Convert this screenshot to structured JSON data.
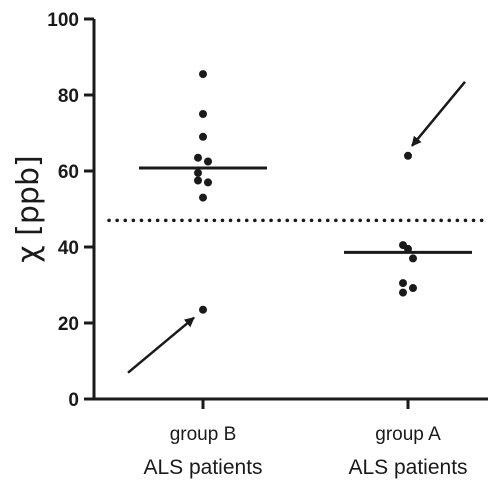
{
  "chart_data": {
    "type": "scatter",
    "title": "",
    "ylabel": "χ [ppb]",
    "xlabel": "",
    "ylim": [
      0,
      100
    ],
    "yticks": [
      0,
      20,
      40,
      60,
      80,
      100
    ],
    "categories": [
      {
        "line1": "group B",
        "line2": "ALS patients"
      },
      {
        "line1": "group A",
        "line2": "ALS patients"
      }
    ],
    "series": [
      {
        "values": [
          85.5,
          75,
          69,
          63.5,
          62.5,
          59.5,
          57,
          57.5,
          53,
          23.5
        ],
        "mean": 60.8
      },
      {
        "values": [
          64,
          40.5,
          39.5,
          37,
          30.5,
          29.2,
          28
        ],
        "mean": 38.6
      }
    ],
    "threshold": 47,
    "arrows": [
      {
        "category": 0,
        "target_value": 23.5,
        "direction": "from lower-left"
      },
      {
        "category": 1,
        "target_value": 64,
        "direction": "from upper-right"
      }
    ],
    "colors": {
      "ink": "#1a1a1a"
    }
  }
}
